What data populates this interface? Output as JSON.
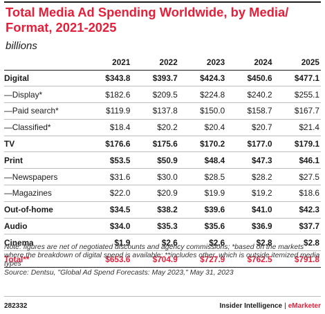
{
  "header": {
    "title": "Total Media Ad Spending Worldwide, by Media/ Format, 2021-2025",
    "subtitle": "billions"
  },
  "colors": {
    "accent": "#e3203a",
    "text": "#1a1a1a",
    "rule": "#bdbdbd"
  },
  "chart_data": {
    "type": "table",
    "title": "Total Media Ad Spending Worldwide, by Media/ Format, 2021-2025",
    "subtitle": "billions",
    "columns": [
      "2021",
      "2022",
      "2023",
      "2024",
      "2025"
    ],
    "rows": [
      {
        "label": "Digital",
        "kind": "cat",
        "values": [
          "$343.8",
          "$393.7",
          "$424.3",
          "$450.6",
          "$477.1"
        ]
      },
      {
        "label": "—Display*",
        "kind": "sub",
        "values": [
          "$182.6",
          "$209.5",
          "$224.8",
          "$240.2",
          "$255.1"
        ]
      },
      {
        "label": "—Paid search*",
        "kind": "sub",
        "values": [
          "$119.9",
          "$137.8",
          "$150.0",
          "$158.7",
          "$167.7"
        ]
      },
      {
        "label": "—Classified*",
        "kind": "sub",
        "values": [
          "$18.4",
          "$20.2",
          "$20.4",
          "$20.7",
          "$21.4"
        ]
      },
      {
        "label": "TV",
        "kind": "cat",
        "values": [
          "$176.6",
          "$175.6",
          "$170.2",
          "$177.0",
          "$179.1"
        ]
      },
      {
        "label": "Print",
        "kind": "cat",
        "values": [
          "$53.5",
          "$50.9",
          "$48.4",
          "$47.3",
          "$46.1"
        ]
      },
      {
        "label": "—Newspapers",
        "kind": "sub",
        "values": [
          "$31.6",
          "$30.0",
          "$28.5",
          "$28.2",
          "$27.5"
        ]
      },
      {
        "label": "—Magazines",
        "kind": "sub",
        "values": [
          "$22.0",
          "$20.9",
          "$19.9",
          "$19.2",
          "$18.6"
        ]
      },
      {
        "label": "Out-of-home",
        "kind": "cat",
        "values": [
          "$34.5",
          "$38.2",
          "$39.6",
          "$41.0",
          "$42.3"
        ]
      },
      {
        "label": "Audio",
        "kind": "cat",
        "values": [
          "$34.0",
          "$35.3",
          "$35.6",
          "$36.9",
          "$37.7"
        ]
      },
      {
        "label": "Cinema",
        "kind": "cat",
        "values": [
          "$1.9",
          "$2.6",
          "$2.6",
          "$2.8",
          "$2.8"
        ]
      },
      {
        "label": "Total**",
        "kind": "total",
        "values": [
          "$653.6",
          "$704.9",
          "$727.9",
          "$762.5",
          "$791.8"
        ]
      }
    ]
  },
  "footnotes": {
    "note": "Note: figures are net of negotiated discounts and agency commissions; *based on the markets where the breakdown of digital spend is available; **includes other, which is outside itemized media types",
    "source": "Source: Dentsu, \"Global Ad Spend Forecasts: May 2023,\" May 31, 2023"
  },
  "footer": {
    "chart_id": "282332",
    "brand_left": "Insider Intelligence",
    "brand_sep": "|",
    "brand_right": "eMarketer"
  }
}
